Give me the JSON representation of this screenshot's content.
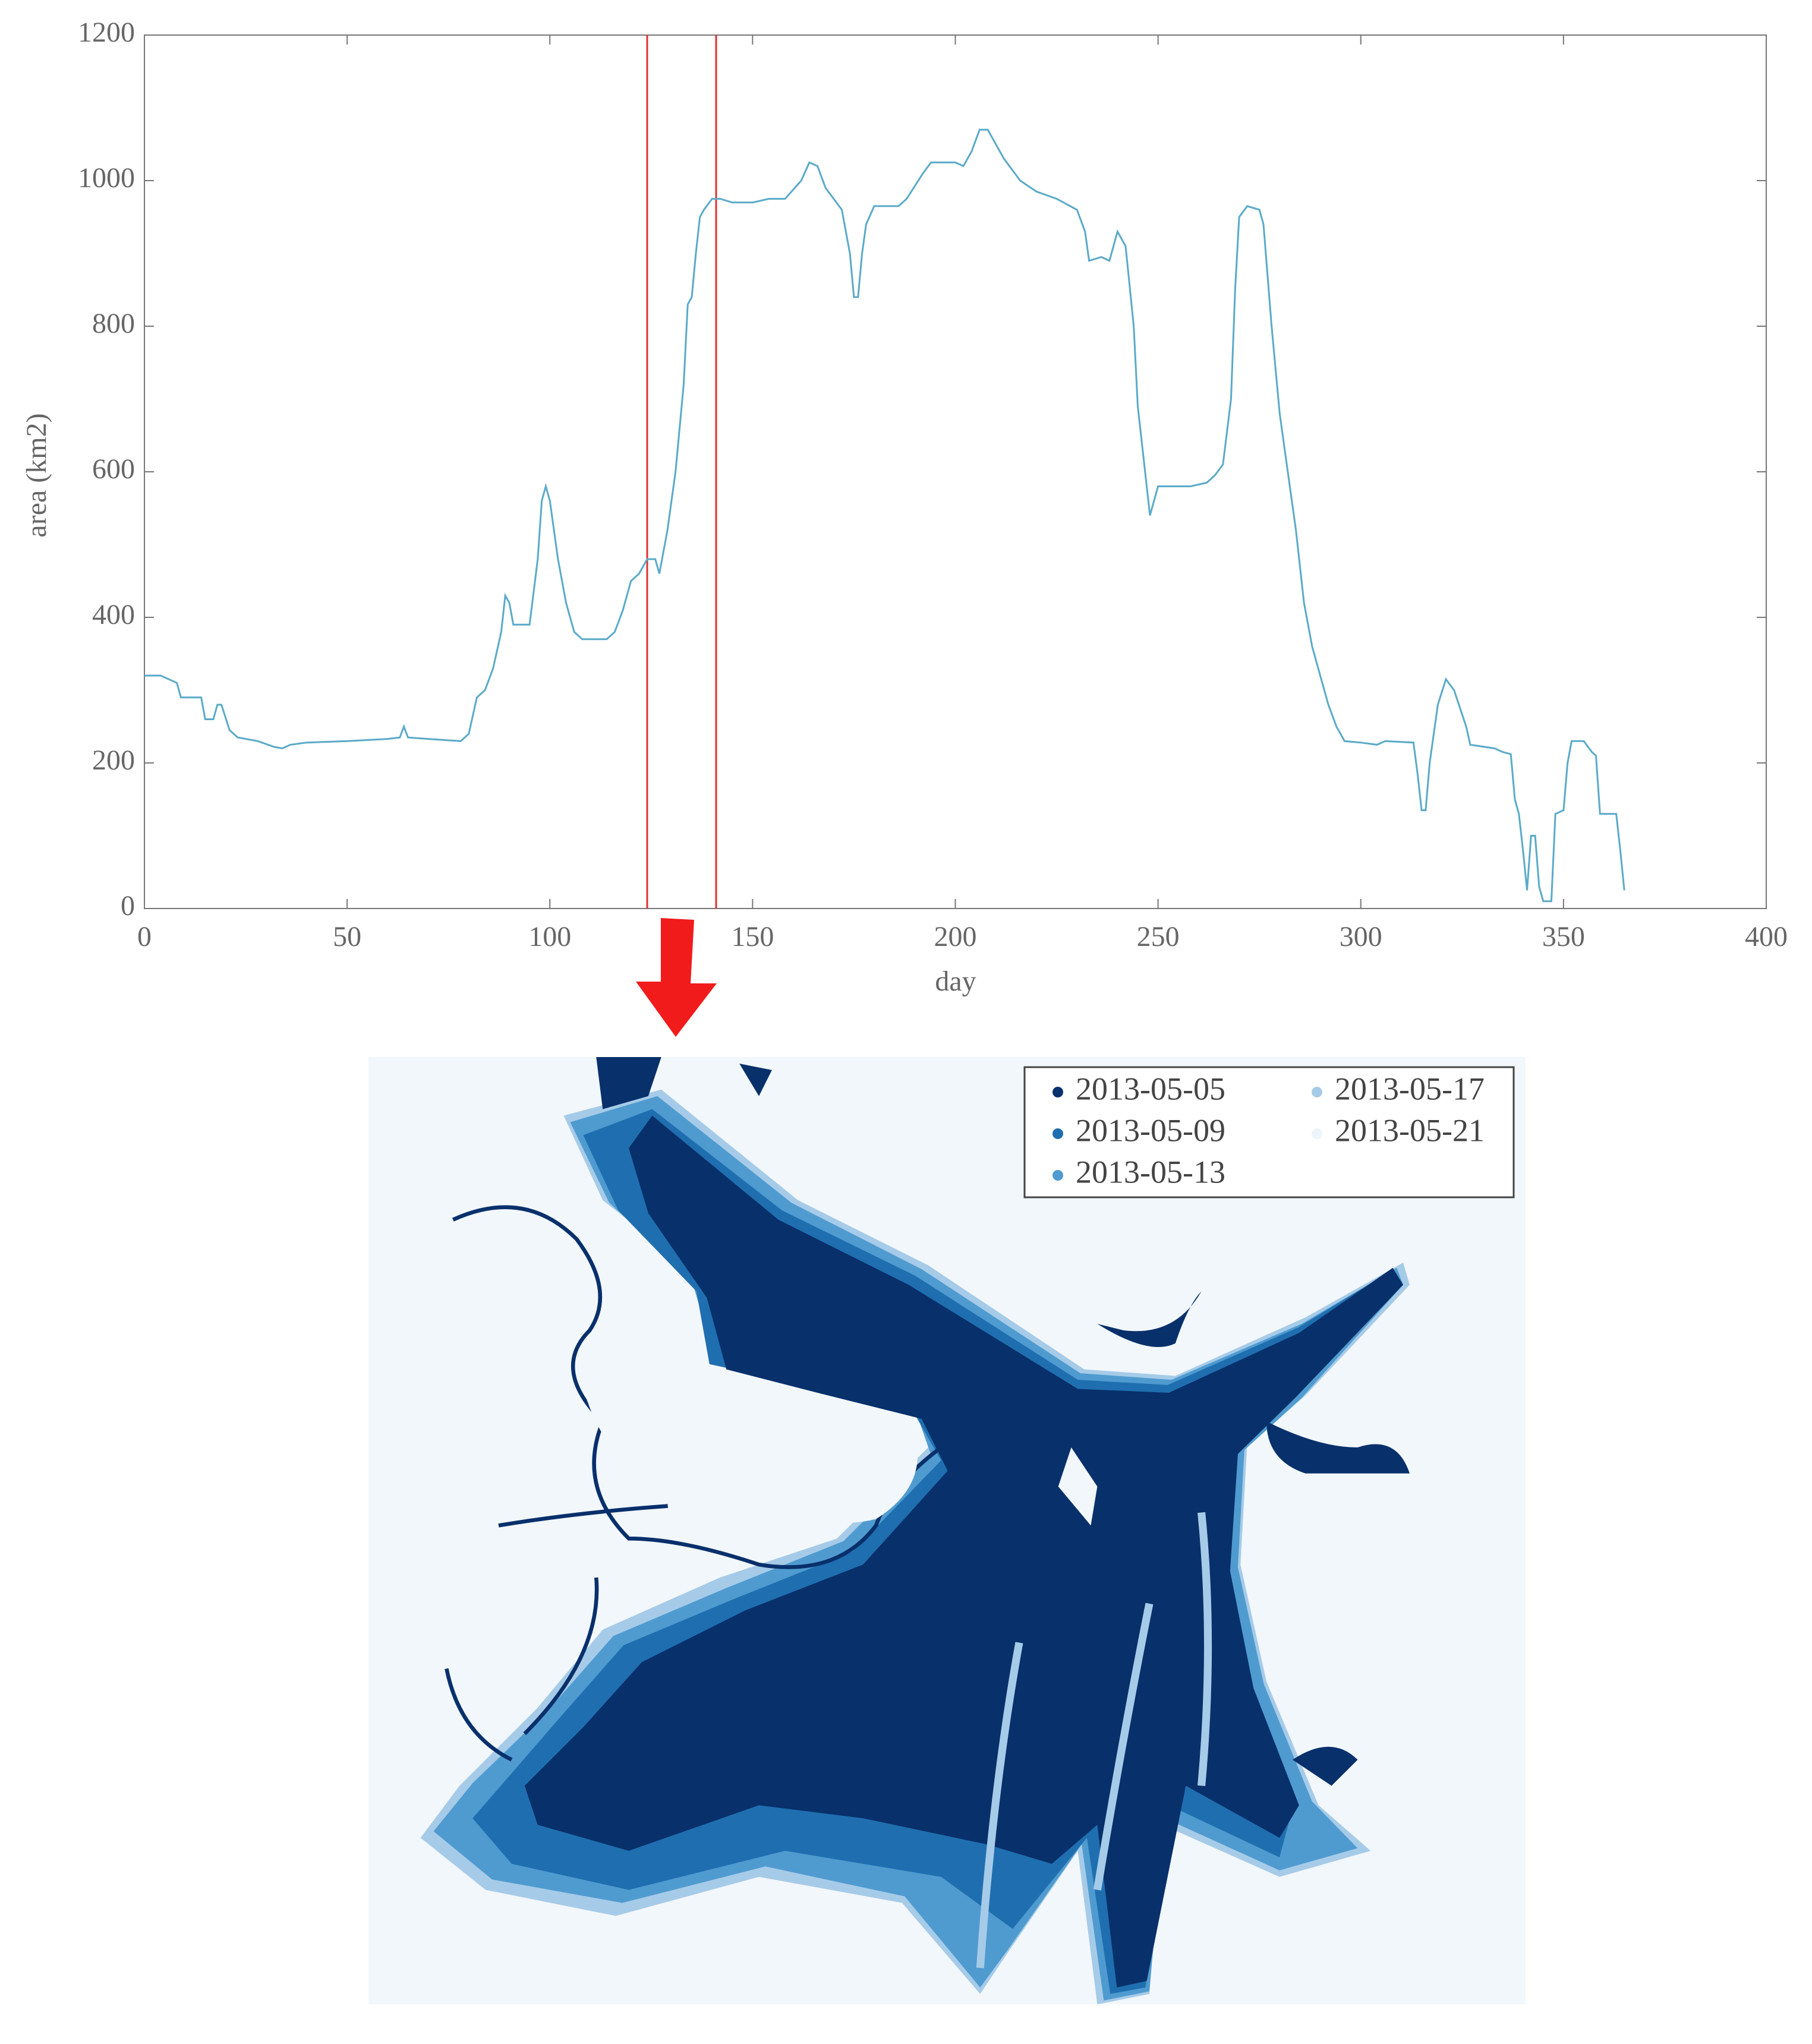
{
  "chart_data": {
    "type": "line",
    "xlabel": "day",
    "ylabel": "area (km2)",
    "color": "#5aaac8",
    "x": [
      0,
      4,
      8,
      9,
      14,
      15,
      17,
      18,
      19,
      21,
      23,
      28,
      32,
      34,
      36,
      40,
      50,
      60,
      63,
      64,
      65,
      70,
      78,
      80,
      82,
      84,
      86,
      88,
      89,
      90,
      91,
      95,
      97,
      98,
      99,
      100,
      102,
      104,
      106,
      108,
      114,
      116,
      118,
      120,
      122,
      124,
      126,
      127,
      129,
      131,
      133,
      134,
      135,
      136,
      137,
      138,
      140,
      142,
      145,
      150,
      154,
      158,
      162,
      164,
      166,
      168,
      172,
      174,
      175,
      176,
      177,
      178,
      180,
      186,
      188,
      192,
      194,
      200,
      202,
      204,
      206,
      208,
      210,
      212,
      216,
      220,
      225,
      230,
      232,
      233,
      236,
      238,
      240,
      242,
      244,
      245,
      247,
      248,
      250,
      258,
      262,
      264,
      266,
      268,
      269,
      270,
      272,
      275,
      276,
      278,
      280,
      282,
      284,
      286,
      288,
      290,
      292,
      294,
      296,
      300,
      304,
      306,
      313,
      314,
      315,
      316,
      317,
      319,
      321,
      323,
      326,
      327,
      333,
      335,
      337,
      338,
      339,
      340,
      341,
      342,
      343,
      344,
      345,
      347,
      348,
      350,
      351,
      352,
      355,
      357,
      358,
      359,
      361,
      363,
      364,
      365
    ],
    "values": [
      320,
      320,
      310,
      290,
      290,
      260,
      260,
      280,
      280,
      245,
      235,
      230,
      222,
      220,
      225,
      228,
      230,
      233,
      235,
      250,
      235,
      233,
      230,
      240,
      290,
      300,
      330,
      380,
      430,
      420,
      390,
      390,
      480,
      560,
      580,
      560,
      480,
      420,
      380,
      370,
      370,
      380,
      410,
      450,
      460,
      480,
      480,
      460,
      520,
      600,
      720,
      830,
      840,
      900,
      950,
      960,
      975,
      975,
      970,
      970,
      975,
      975,
      1000,
      1025,
      1020,
      990,
      960,
      900,
      840,
      840,
      900,
      940,
      965,
      965,
      975,
      1010,
      1025,
      1025,
      1020,
      1040,
      1070,
      1070,
      1050,
      1030,
      1000,
      985,
      975,
      960,
      930,
      890,
      895,
      890,
      930,
      910,
      800,
      690,
      590,
      540,
      580,
      580,
      585,
      595,
      610,
      700,
      850,
      950,
      965,
      960,
      940,
      800,
      680,
      600,
      520,
      420,
      360,
      320,
      280,
      250,
      230,
      228,
      225,
      230,
      228,
      185,
      135,
      135,
      200,
      280,
      315,
      300,
      250,
      225,
      220,
      215,
      212,
      150,
      130,
      80,
      25,
      100,
      100,
      30,
      10,
      10,
      130,
      135,
      200,
      230,
      230,
      215,
      210,
      130,
      130,
      130,
      80,
      25
    ],
    "vlines": [
      124,
      141
    ],
    "vline_color": "#e03030",
    "xlim": [
      0,
      400
    ],
    "xticks": [
      0,
      50,
      100,
      150,
      200,
      250,
      300,
      350,
      400
    ],
    "ylim": [
      0,
      1200
    ],
    "yticks": [
      0,
      200,
      400,
      600,
      800,
      1000,
      1200
    ]
  },
  "map": {
    "legend": [
      {
        "label": "2013-05-05",
        "color": "#08306b"
      },
      {
        "label": "2013-05-09",
        "color": "#1f6fb0"
      },
      {
        "label": "2013-05-13",
        "color": "#4f9bd0"
      },
      {
        "label": "2013-05-17",
        "color": "#a6cbe8"
      },
      {
        "label": "2013-05-21",
        "color": "#eef4fb"
      }
    ]
  }
}
